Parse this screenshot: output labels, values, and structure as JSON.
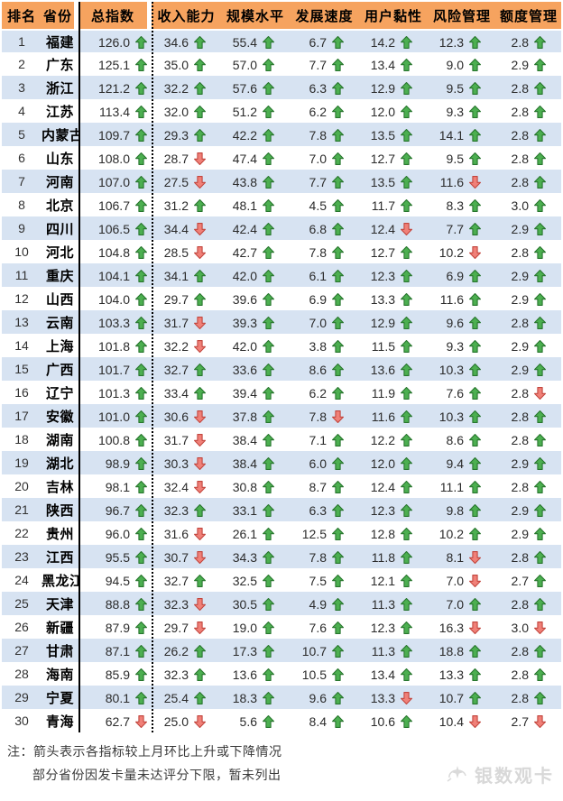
{
  "colors": {
    "header_bg": "#F6A35F",
    "row_stripe": "#D7E3F2",
    "up_arrow_fill": "#4CAF50",
    "up_arrow_border": "#27752D",
    "down_arrow_fill": "#F08078",
    "down_arrow_border": "#C2453D",
    "divider_line": "#000000"
  },
  "chart_data": {
    "type": "table",
    "title": "",
    "columns": [
      "排名",
      "省份",
      "总指数",
      "收入能力",
      "规模水平",
      "发展速度",
      "用户黏性",
      "风险管理",
      "额度管理"
    ],
    "rows": [
      {
        "rank": "1",
        "province": "福建",
        "metrics": [
          {
            "v": "126.0",
            "d": "up"
          },
          {
            "v": "34.6",
            "d": "up"
          },
          {
            "v": "55.4",
            "d": "up"
          },
          {
            "v": "6.7",
            "d": "up"
          },
          {
            "v": "14.2",
            "d": "up"
          },
          {
            "v": "12.3",
            "d": "up"
          },
          {
            "v": "2.8",
            "d": "up"
          }
        ]
      },
      {
        "rank": "2",
        "province": "广东",
        "metrics": [
          {
            "v": "125.1",
            "d": "up"
          },
          {
            "v": "35.0",
            "d": "up"
          },
          {
            "v": "57.0",
            "d": "up"
          },
          {
            "v": "7.7",
            "d": "up"
          },
          {
            "v": "13.4",
            "d": "up"
          },
          {
            "v": "9.0",
            "d": "up"
          },
          {
            "v": "2.9",
            "d": "up"
          }
        ]
      },
      {
        "rank": "3",
        "province": "浙江",
        "metrics": [
          {
            "v": "121.2",
            "d": "up"
          },
          {
            "v": "32.2",
            "d": "up"
          },
          {
            "v": "57.6",
            "d": "up"
          },
          {
            "v": "6.3",
            "d": "up"
          },
          {
            "v": "12.9",
            "d": "up"
          },
          {
            "v": "9.5",
            "d": "up"
          },
          {
            "v": "2.8",
            "d": "up"
          }
        ]
      },
      {
        "rank": "4",
        "province": "江苏",
        "metrics": [
          {
            "v": "113.4",
            "d": "up"
          },
          {
            "v": "32.0",
            "d": "up"
          },
          {
            "v": "51.2",
            "d": "up"
          },
          {
            "v": "6.2",
            "d": "up"
          },
          {
            "v": "12.0",
            "d": "up"
          },
          {
            "v": "9.3",
            "d": "up"
          },
          {
            "v": "2.8",
            "d": "up"
          }
        ]
      },
      {
        "rank": "5",
        "province": "内蒙古",
        "metrics": [
          {
            "v": "109.7",
            "d": "up"
          },
          {
            "v": "29.3",
            "d": "up"
          },
          {
            "v": "42.2",
            "d": "up"
          },
          {
            "v": "7.8",
            "d": "up"
          },
          {
            "v": "13.5",
            "d": "up"
          },
          {
            "v": "14.1",
            "d": "up"
          },
          {
            "v": "2.8",
            "d": "up"
          }
        ]
      },
      {
        "rank": "6",
        "province": "山东",
        "metrics": [
          {
            "v": "108.0",
            "d": "up"
          },
          {
            "v": "28.7",
            "d": "down"
          },
          {
            "v": "47.4",
            "d": "up"
          },
          {
            "v": "7.0",
            "d": "up"
          },
          {
            "v": "12.7",
            "d": "up"
          },
          {
            "v": "9.5",
            "d": "up"
          },
          {
            "v": "2.8",
            "d": "up"
          }
        ]
      },
      {
        "rank": "7",
        "province": "河南",
        "metrics": [
          {
            "v": "107.0",
            "d": "up"
          },
          {
            "v": "27.5",
            "d": "down"
          },
          {
            "v": "43.8",
            "d": "up"
          },
          {
            "v": "7.7",
            "d": "up"
          },
          {
            "v": "13.5",
            "d": "up"
          },
          {
            "v": "11.6",
            "d": "down"
          },
          {
            "v": "2.8",
            "d": "up"
          }
        ]
      },
      {
        "rank": "8",
        "province": "北京",
        "metrics": [
          {
            "v": "106.7",
            "d": "up"
          },
          {
            "v": "31.2",
            "d": "up"
          },
          {
            "v": "48.1",
            "d": "up"
          },
          {
            "v": "4.5",
            "d": "up"
          },
          {
            "v": "11.7",
            "d": "up"
          },
          {
            "v": "8.3",
            "d": "up"
          },
          {
            "v": "3.0",
            "d": "up"
          }
        ]
      },
      {
        "rank": "9",
        "province": "四川",
        "metrics": [
          {
            "v": "106.5",
            "d": "up"
          },
          {
            "v": "34.4",
            "d": "down"
          },
          {
            "v": "42.4",
            "d": "up"
          },
          {
            "v": "6.8",
            "d": "up"
          },
          {
            "v": "12.4",
            "d": "down"
          },
          {
            "v": "7.7",
            "d": "up"
          },
          {
            "v": "2.9",
            "d": "up"
          }
        ]
      },
      {
        "rank": "10",
        "province": "河北",
        "metrics": [
          {
            "v": "104.8",
            "d": "up"
          },
          {
            "v": "28.5",
            "d": "down"
          },
          {
            "v": "42.7",
            "d": "up"
          },
          {
            "v": "7.8",
            "d": "up"
          },
          {
            "v": "12.7",
            "d": "up"
          },
          {
            "v": "10.2",
            "d": "down"
          },
          {
            "v": "2.8",
            "d": "up"
          }
        ]
      },
      {
        "rank": "11",
        "province": "重庆",
        "metrics": [
          {
            "v": "104.1",
            "d": "up"
          },
          {
            "v": "34.1",
            "d": "up"
          },
          {
            "v": "42.0",
            "d": "up"
          },
          {
            "v": "6.1",
            "d": "up"
          },
          {
            "v": "12.3",
            "d": "up"
          },
          {
            "v": "6.9",
            "d": "up"
          },
          {
            "v": "2.9",
            "d": "up"
          }
        ]
      },
      {
        "rank": "12",
        "province": "山西",
        "metrics": [
          {
            "v": "104.0",
            "d": "up"
          },
          {
            "v": "29.7",
            "d": "up"
          },
          {
            "v": "39.6",
            "d": "up"
          },
          {
            "v": "6.9",
            "d": "up"
          },
          {
            "v": "13.3",
            "d": "up"
          },
          {
            "v": "11.6",
            "d": "up"
          },
          {
            "v": "2.9",
            "d": "up"
          }
        ]
      },
      {
        "rank": "13",
        "province": "云南",
        "metrics": [
          {
            "v": "103.3",
            "d": "up"
          },
          {
            "v": "31.7",
            "d": "down"
          },
          {
            "v": "39.3",
            "d": "up"
          },
          {
            "v": "7.0",
            "d": "up"
          },
          {
            "v": "12.9",
            "d": "up"
          },
          {
            "v": "9.6",
            "d": "up"
          },
          {
            "v": "2.8",
            "d": "up"
          }
        ]
      },
      {
        "rank": "14",
        "province": "上海",
        "metrics": [
          {
            "v": "101.8",
            "d": "up"
          },
          {
            "v": "32.2",
            "d": "down"
          },
          {
            "v": "42.0",
            "d": "up"
          },
          {
            "v": "3.8",
            "d": "up"
          },
          {
            "v": "11.5",
            "d": "up"
          },
          {
            "v": "9.3",
            "d": "up"
          },
          {
            "v": "2.9",
            "d": "up"
          }
        ]
      },
      {
        "rank": "15",
        "province": "广西",
        "metrics": [
          {
            "v": "101.7",
            "d": "up"
          },
          {
            "v": "32.7",
            "d": "up"
          },
          {
            "v": "33.6",
            "d": "up"
          },
          {
            "v": "8.6",
            "d": "up"
          },
          {
            "v": "13.6",
            "d": "up"
          },
          {
            "v": "10.3",
            "d": "up"
          },
          {
            "v": "2.9",
            "d": "up"
          }
        ]
      },
      {
        "rank": "16",
        "province": "辽宁",
        "metrics": [
          {
            "v": "101.3",
            "d": "up"
          },
          {
            "v": "33.4",
            "d": "up"
          },
          {
            "v": "39.4",
            "d": "up"
          },
          {
            "v": "6.2",
            "d": "up"
          },
          {
            "v": "11.9",
            "d": "up"
          },
          {
            "v": "7.6",
            "d": "up"
          },
          {
            "v": "2.8",
            "d": "down"
          }
        ]
      },
      {
        "rank": "17",
        "province": "安徽",
        "metrics": [
          {
            "v": "101.0",
            "d": "up"
          },
          {
            "v": "30.6",
            "d": "down"
          },
          {
            "v": "37.8",
            "d": "up"
          },
          {
            "v": "7.8",
            "d": "down"
          },
          {
            "v": "11.6",
            "d": "up"
          },
          {
            "v": "10.3",
            "d": "up"
          },
          {
            "v": "2.8",
            "d": "up"
          }
        ]
      },
      {
        "rank": "18",
        "province": "湖南",
        "metrics": [
          {
            "v": "100.8",
            "d": "up"
          },
          {
            "v": "31.7",
            "d": "down"
          },
          {
            "v": "38.4",
            "d": "up"
          },
          {
            "v": "7.1",
            "d": "up"
          },
          {
            "v": "12.2",
            "d": "up"
          },
          {
            "v": "8.6",
            "d": "up"
          },
          {
            "v": "2.8",
            "d": "up"
          }
        ]
      },
      {
        "rank": "19",
        "province": "湖北",
        "metrics": [
          {
            "v": "98.9",
            "d": "up"
          },
          {
            "v": "30.3",
            "d": "down"
          },
          {
            "v": "38.4",
            "d": "up"
          },
          {
            "v": "6.0",
            "d": "up"
          },
          {
            "v": "12.0",
            "d": "up"
          },
          {
            "v": "9.4",
            "d": "up"
          },
          {
            "v": "2.9",
            "d": "up"
          }
        ]
      },
      {
        "rank": "20",
        "province": "吉林",
        "metrics": [
          {
            "v": "98.1",
            "d": "up"
          },
          {
            "v": "32.4",
            "d": "down"
          },
          {
            "v": "30.8",
            "d": "up"
          },
          {
            "v": "8.7",
            "d": "up"
          },
          {
            "v": "12.4",
            "d": "up"
          },
          {
            "v": "11.1",
            "d": "up"
          },
          {
            "v": "2.8",
            "d": "up"
          }
        ]
      },
      {
        "rank": "21",
        "province": "陕西",
        "metrics": [
          {
            "v": "96.7",
            "d": "up"
          },
          {
            "v": "32.3",
            "d": "up"
          },
          {
            "v": "33.1",
            "d": "up"
          },
          {
            "v": "6.3",
            "d": "up"
          },
          {
            "v": "12.3",
            "d": "up"
          },
          {
            "v": "9.8",
            "d": "up"
          },
          {
            "v": "2.9",
            "d": "up"
          }
        ]
      },
      {
        "rank": "22",
        "province": "贵州",
        "metrics": [
          {
            "v": "96.0",
            "d": "up"
          },
          {
            "v": "31.6",
            "d": "down"
          },
          {
            "v": "26.1",
            "d": "up"
          },
          {
            "v": "12.5",
            "d": "up"
          },
          {
            "v": "12.8",
            "d": "up"
          },
          {
            "v": "10.2",
            "d": "up"
          },
          {
            "v": "2.9",
            "d": "up"
          }
        ]
      },
      {
        "rank": "23",
        "province": "江西",
        "metrics": [
          {
            "v": "95.5",
            "d": "up"
          },
          {
            "v": "30.7",
            "d": "down"
          },
          {
            "v": "34.3",
            "d": "up"
          },
          {
            "v": "7.8",
            "d": "up"
          },
          {
            "v": "11.8",
            "d": "up"
          },
          {
            "v": "8.1",
            "d": "down"
          },
          {
            "v": "2.8",
            "d": "up"
          }
        ]
      },
      {
        "rank": "24",
        "province": "黑龙江",
        "metrics": [
          {
            "v": "94.5",
            "d": "up"
          },
          {
            "v": "32.7",
            "d": "up"
          },
          {
            "v": "32.5",
            "d": "up"
          },
          {
            "v": "7.5",
            "d": "up"
          },
          {
            "v": "12.1",
            "d": "up"
          },
          {
            "v": "7.0",
            "d": "down"
          },
          {
            "v": "2.7",
            "d": "up"
          }
        ]
      },
      {
        "rank": "25",
        "province": "天津",
        "metrics": [
          {
            "v": "88.8",
            "d": "up"
          },
          {
            "v": "32.3",
            "d": "down"
          },
          {
            "v": "30.5",
            "d": "up"
          },
          {
            "v": "4.9",
            "d": "up"
          },
          {
            "v": "11.3",
            "d": "up"
          },
          {
            "v": "7.0",
            "d": "up"
          },
          {
            "v": "2.8",
            "d": "up"
          }
        ]
      },
      {
        "rank": "26",
        "province": "新疆",
        "metrics": [
          {
            "v": "87.9",
            "d": "up"
          },
          {
            "v": "29.7",
            "d": "down"
          },
          {
            "v": "19.0",
            "d": "up"
          },
          {
            "v": "7.6",
            "d": "up"
          },
          {
            "v": "12.3",
            "d": "up"
          },
          {
            "v": "16.3",
            "d": "down"
          },
          {
            "v": "3.0",
            "d": "down"
          }
        ]
      },
      {
        "rank": "27",
        "province": "甘肃",
        "metrics": [
          {
            "v": "87.1",
            "d": "up"
          },
          {
            "v": "26.2",
            "d": "up"
          },
          {
            "v": "17.3",
            "d": "up"
          },
          {
            "v": "10.7",
            "d": "up"
          },
          {
            "v": "11.3",
            "d": "up"
          },
          {
            "v": "18.8",
            "d": "up"
          },
          {
            "v": "2.8",
            "d": "up"
          }
        ]
      },
      {
        "rank": "28",
        "province": "海南",
        "metrics": [
          {
            "v": "85.9",
            "d": "up"
          },
          {
            "v": "32.3",
            "d": "up"
          },
          {
            "v": "13.6",
            "d": "up"
          },
          {
            "v": "10.5",
            "d": "up"
          },
          {
            "v": "13.4",
            "d": "up"
          },
          {
            "v": "13.3",
            "d": "up"
          },
          {
            "v": "2.8",
            "d": "up"
          }
        ]
      },
      {
        "rank": "29",
        "province": "宁夏",
        "metrics": [
          {
            "v": "80.1",
            "d": "up"
          },
          {
            "v": "25.4",
            "d": "up"
          },
          {
            "v": "18.3",
            "d": "up"
          },
          {
            "v": "9.6",
            "d": "up"
          },
          {
            "v": "13.3",
            "d": "down"
          },
          {
            "v": "10.7",
            "d": "up"
          },
          {
            "v": "2.8",
            "d": "up"
          }
        ]
      },
      {
        "rank": "30",
        "province": "青海",
        "metrics": [
          {
            "v": "62.7",
            "d": "down"
          },
          {
            "v": "25.0",
            "d": "down"
          },
          {
            "v": "5.6",
            "d": "up"
          },
          {
            "v": "8.4",
            "d": "up"
          },
          {
            "v": "10.6",
            "d": "up"
          },
          {
            "v": "10.4",
            "d": "down"
          },
          {
            "v": "2.7",
            "d": "down"
          }
        ]
      }
    ]
  },
  "notes": {
    "line1": "注：箭头表示各指标较上月环比上升或下降情况",
    "line2": "部分省份因发卡量未达评分下限，暂未列出"
  },
  "watermark": {
    "text": "银数观卡"
  }
}
